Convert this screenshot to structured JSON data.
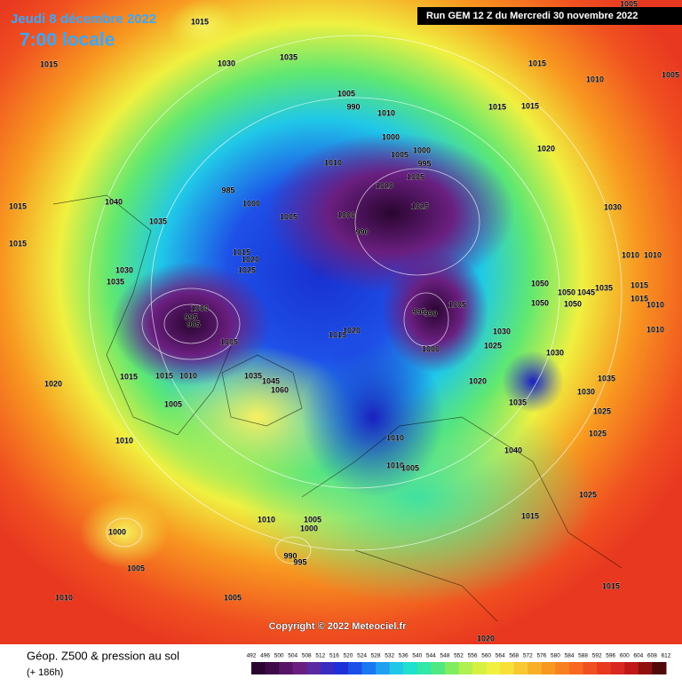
{
  "header": {
    "date": "Jeudi 8 décembre 2022",
    "time": "7:00 locale",
    "run": "Run GEM 12 Z du Mercredi 30 novembre 2022"
  },
  "copyright": "Copyright © 2022 Meteociel.fr",
  "legend": {
    "title": "Géop. Z500 & pression au sol",
    "lead": "(+ 186h)",
    "scale": [
      492,
      496,
      500,
      504,
      508,
      512,
      516,
      520,
      524,
      528,
      532,
      536,
      540,
      544,
      548,
      552,
      556,
      560,
      564,
      568,
      572,
      576,
      580,
      584,
      588,
      592,
      596,
      600,
      604,
      608,
      612
    ],
    "colors": [
      "#2a0530",
      "#3e0a48",
      "#561565",
      "#6a1f80",
      "#5a2aa0",
      "#3a2cc0",
      "#1e30d8",
      "#1a50e8",
      "#1a78f0",
      "#20a0f0",
      "#20c8e8",
      "#20e0d0",
      "#30e8a8",
      "#50e880",
      "#80ec60",
      "#b0f050",
      "#d8f040",
      "#f0f040",
      "#f8e038",
      "#f8c830",
      "#f8b028",
      "#f89820",
      "#f88020",
      "#f86820",
      "#f05020",
      "#e83820",
      "#d82820",
      "#c01818",
      "#901010",
      "#500808"
    ]
  },
  "isobar_labels": [
    1015,
    1030,
    1035,
    1015,
    1015,
    1010,
    1005,
    1005,
    1005,
    990,
    1010,
    1015,
    1015,
    1000,
    1000,
    1005,
    995,
    1020,
    1010,
    1020,
    1005,
    985,
    1000,
    1040,
    1015,
    1035,
    1005,
    1000,
    990,
    1025,
    1030,
    1015,
    1015,
    1020,
    1025,
    1010,
    1010,
    1030,
    1035,
    1050,
    1050,
    1045,
    1035,
    1015,
    1050,
    1050,
    1015,
    1010,
    1000,
    995,
    985,
    995,
    990,
    1005,
    1015,
    1020,
    1005,
    1030,
    1010,
    1025,
    1000,
    1030,
    1015,
    1015,
    1010,
    1035,
    1045,
    1060,
    1020,
    1020,
    1035,
    1030,
    1035,
    1025,
    1005,
    1010,
    1010,
    1025,
    1040,
    1010,
    1005,
    1025,
    1010,
    1005,
    1000,
    1015,
    1000,
    990,
    995,
    1005,
    1010,
    1005,
    1015,
    1020
  ]
}
